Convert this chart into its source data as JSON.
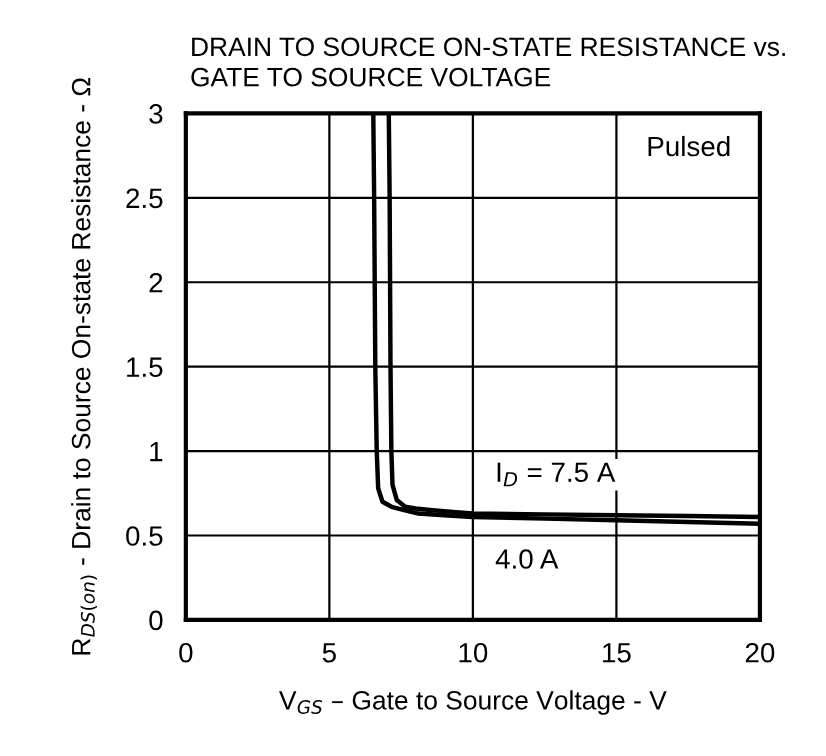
{
  "chart_data": {
    "type": "line",
    "title": "DRAIN TO SOURCE ON-STATE RESISTANCE vs.\nGATE TO SOURCE VOLTAGE",
    "xlabel": "V$_{GS}$ – Gate to Source Voltage - V",
    "ylabel": "R$_{DS(on)}$ - Drain to Source On-state Resistance - Ω",
    "series": [
      {
        "color": "#000000",
        "x": [
          6.53,
          6.56,
          6.6,
          6.65,
          6.7,
          6.85,
          7.17,
          7.6,
          8.1,
          9,
          10,
          12.5,
          15,
          17.5,
          20
        ],
        "values": [
          3,
          2.5,
          1.5,
          1,
          0.78,
          0.7,
          0.67,
          0.65,
          0.63,
          0.62,
          0.61,
          0.6,
          0.59,
          0.58,
          0.57
        ]
      },
      {
        "color": "#000000",
        "x": [
          7.07,
          7.1,
          7.13,
          7.16,
          7.2,
          7.35,
          7.64,
          8,
          8.6,
          9.3,
          10,
          12.5,
          15,
          17.5,
          20
        ],
        "values": [
          3,
          2.5,
          1.5,
          1,
          0.8,
          0.71,
          0.67,
          0.66,
          0.65,
          0.64,
          0.63,
          0.625,
          0.62,
          0.615,
          0.61
        ]
      }
    ],
    "annotations": [
      "Pulsed",
      {
        "text": "I$_{D}$ = 7.5 A",
        "x": 10,
        "y": 0.63
      },
      {
        "text": "4.0 A",
        "x": 10,
        "y": 0.61
      }
    ],
    "xlim": [
      0,
      20
    ],
    "xticks": [
      0,
      5,
      10,
      15,
      20
    ],
    "ylim": [
      0,
      3
    ],
    "yticks": [
      0,
      0.5,
      1,
      1.5,
      2,
      2.5,
      3
    ],
    "grid": true,
    "legend": false,
    "marker": "none",
    "line_style": "solid"
  }
}
